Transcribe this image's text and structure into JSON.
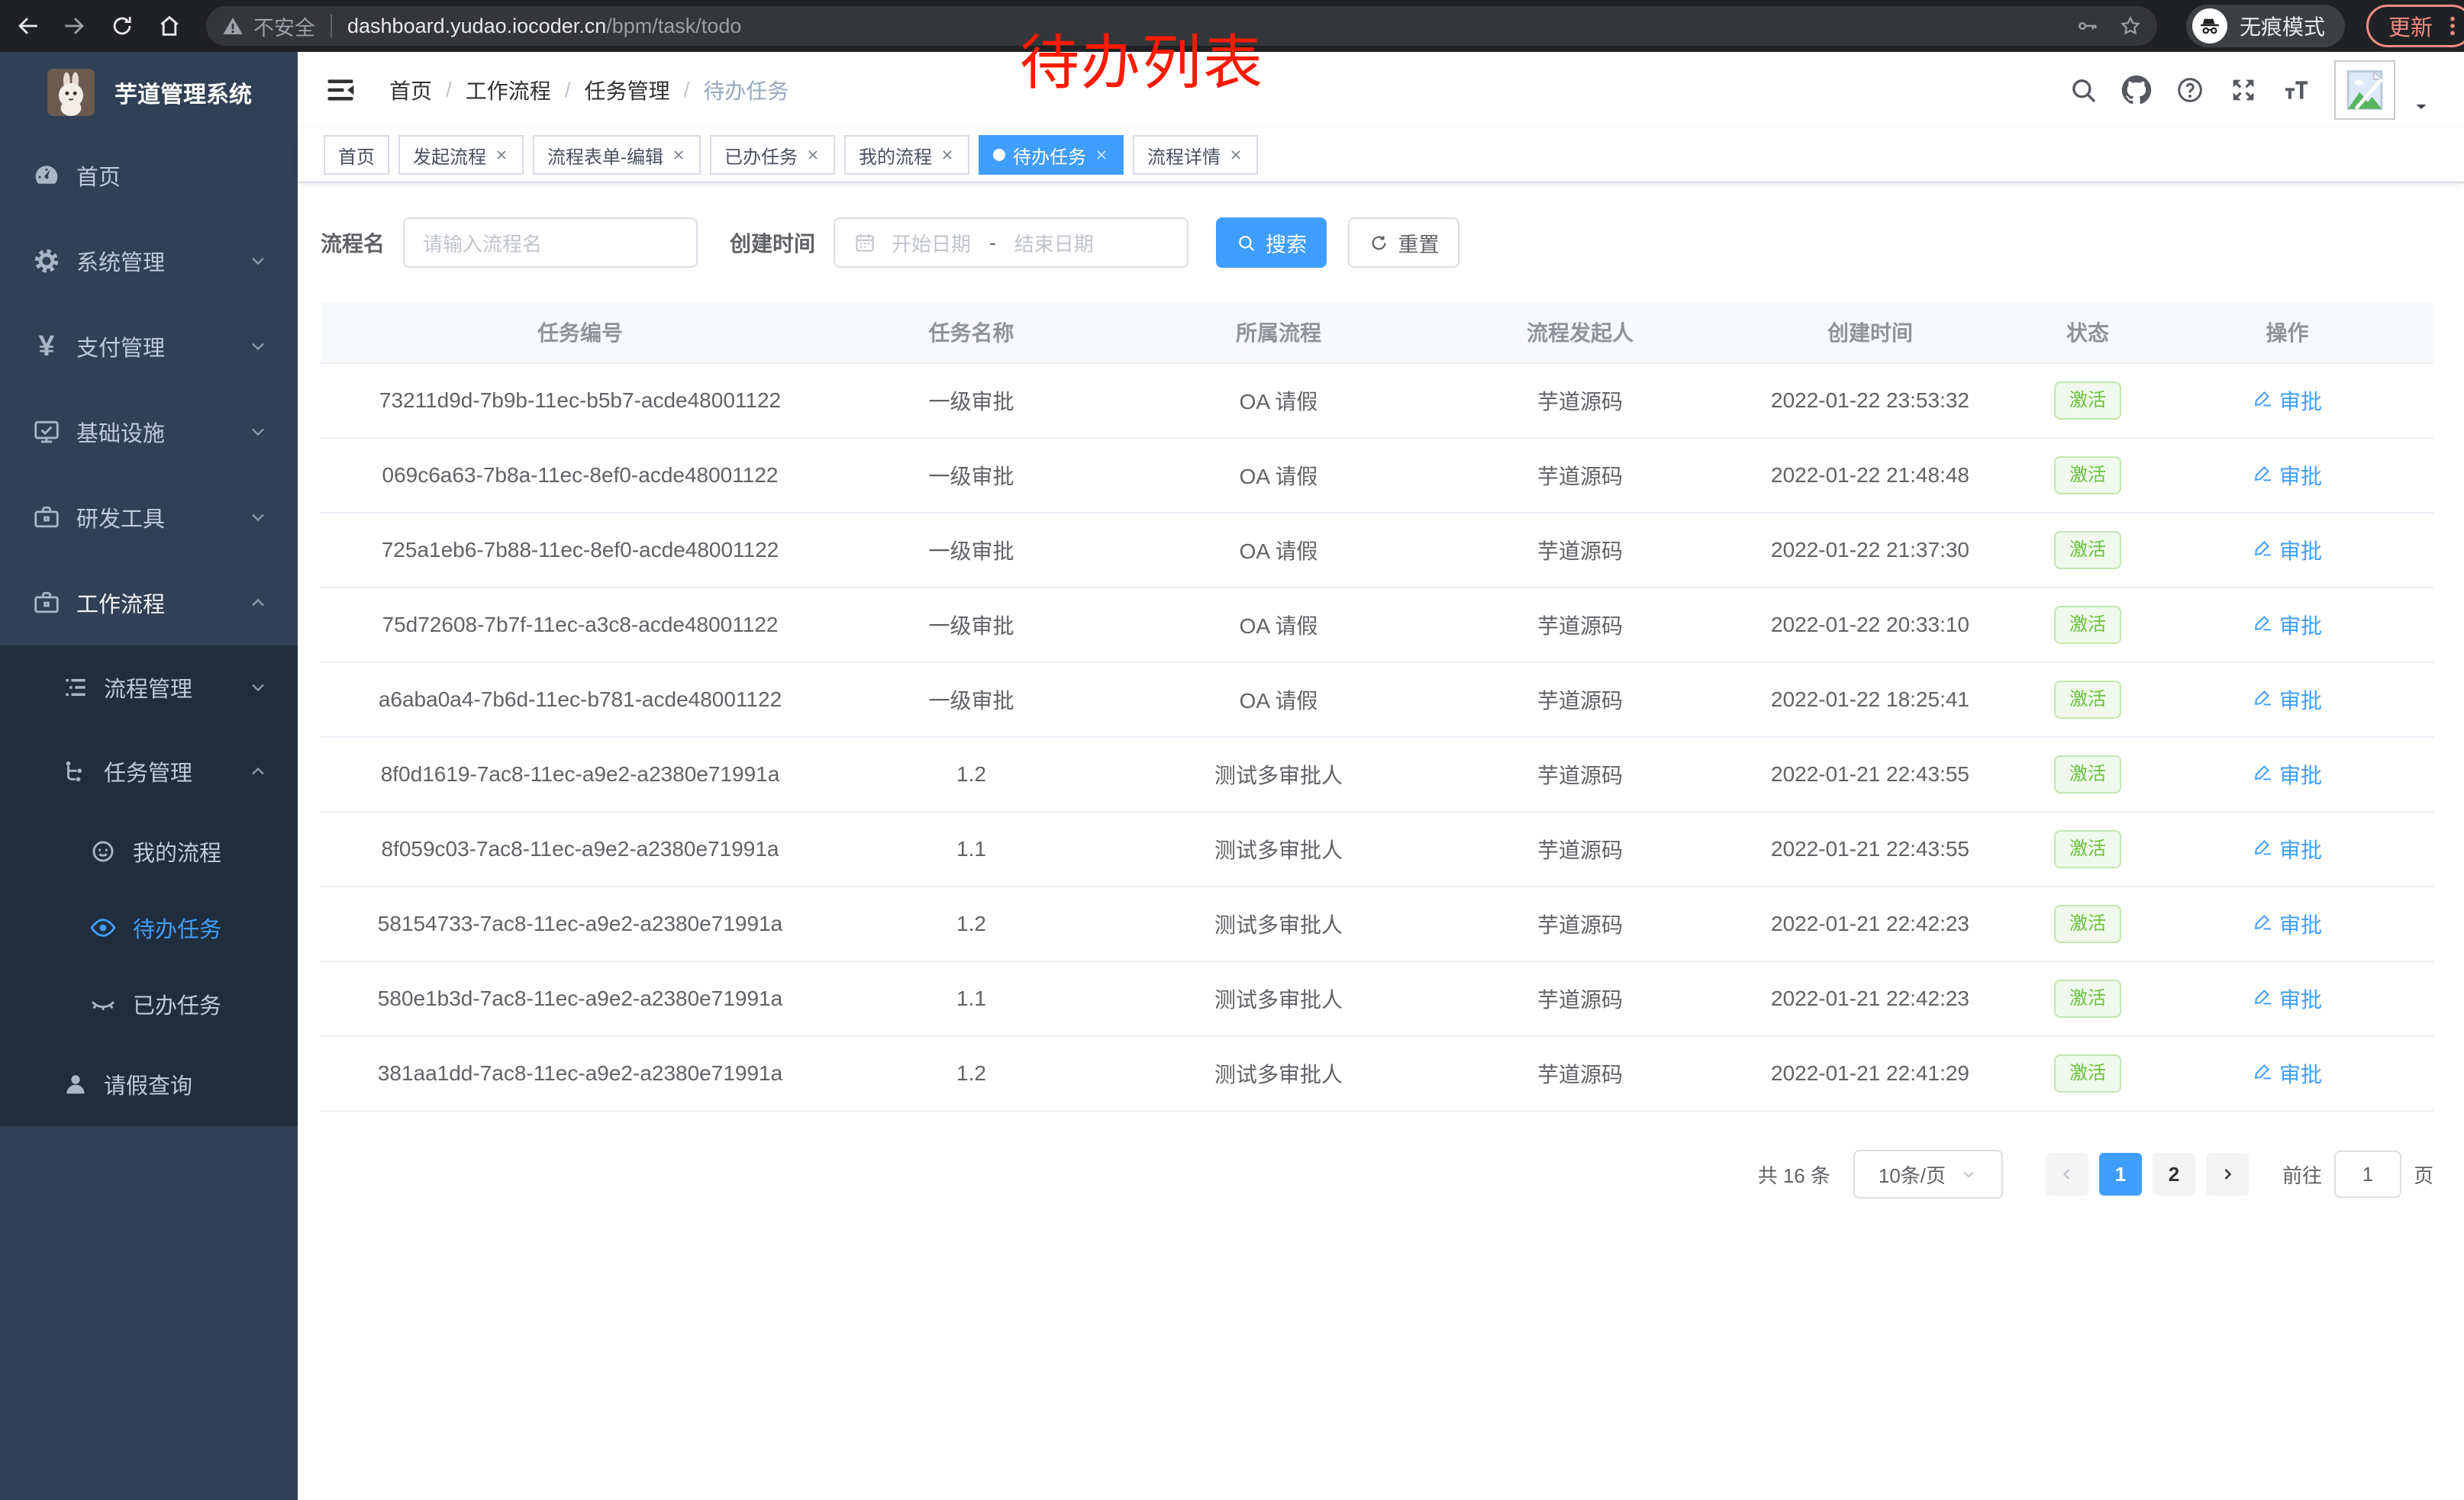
{
  "browser": {
    "security_label": "不安全",
    "url_host": "dashboard.yudao.iocoder.cn",
    "url_path": "/bpm/task/todo",
    "incognito_label": "无痕模式",
    "update_label": "更新"
  },
  "overlay_title": "待办列表",
  "sidebar": {
    "app_title": "芋道管理系统",
    "menu": [
      {
        "key": "home",
        "label": "首页",
        "icon": "dashboard-icon",
        "level": 1
      },
      {
        "key": "system-management",
        "label": "系统管理",
        "icon": "gear-icon",
        "level": 1,
        "chevron": "down"
      },
      {
        "key": "payment-management",
        "label": "支付管理",
        "icon": "yen-icon",
        "level": 1,
        "chevron": "down"
      },
      {
        "key": "infrastructure",
        "label": "基础设施",
        "icon": "monitor-icon",
        "level": 1,
        "chevron": "down"
      },
      {
        "key": "dev-tools",
        "label": "研发工具",
        "icon": "toolbox-icon",
        "level": 1,
        "chevron": "down"
      },
      {
        "key": "workflow",
        "label": "工作流程",
        "icon": "toolbox-icon",
        "level": 1,
        "chevron": "up",
        "highlight": true
      },
      {
        "key": "process-management",
        "label": "流程管理",
        "icon": "tree-list-icon",
        "level": 2,
        "chevron": "down"
      },
      {
        "key": "task-management",
        "label": "任务管理",
        "icon": "flow-icon",
        "level": 2,
        "chevron": "up"
      },
      {
        "key": "my-process",
        "label": "我的流程",
        "icon": "face-icon",
        "level": 3
      },
      {
        "key": "todo-tasks",
        "label": "待办任务",
        "icon": "eye-open-icon",
        "level": 3,
        "active": true
      },
      {
        "key": "done-tasks",
        "label": "已办任务",
        "icon": "eye-closed-icon",
        "level": 3
      },
      {
        "key": "leave-query",
        "label": "请假查询",
        "icon": "user-icon",
        "level": 2
      }
    ]
  },
  "header": {
    "breadcrumb": [
      "首页",
      "工作流程",
      "任务管理",
      "待办任务"
    ],
    "breadcrumb_separator": "/"
  },
  "tabs": [
    {
      "key": "home",
      "label": "首页",
      "closable": false
    },
    {
      "key": "start-process",
      "label": "发起流程",
      "closable": true
    },
    {
      "key": "process-form-edit",
      "label": "流程表单-编辑",
      "closable": true
    },
    {
      "key": "done-tasks",
      "label": "已办任务",
      "closable": true
    },
    {
      "key": "my-process",
      "label": "我的流程",
      "closable": true
    },
    {
      "key": "todo-tasks",
      "label": "待办任务",
      "closable": true,
      "active": true
    },
    {
      "key": "process-detail",
      "label": "流程详情",
      "closable": true
    }
  ],
  "filters": {
    "name_label": "流程名",
    "name_placeholder": "请输入流程名",
    "time_label": "创建时间",
    "start_placeholder": "开始日期",
    "range_separator": "-",
    "end_placeholder": "结束日期",
    "search_label": "搜索",
    "reset_label": "重置"
  },
  "table": {
    "columns": [
      "任务编号",
      "任务名称",
      "所属流程",
      "流程发起人",
      "创建时间",
      "状态",
      "操作"
    ],
    "status_label": "激活",
    "action_label": "审批",
    "rows": [
      {
        "id": "73211d9d-7b9b-11ec-b5b7-acde48001122",
        "name": "一级审批",
        "process": "OA 请假",
        "starter": "芋道源码",
        "created": "2022-01-22 23:53:32"
      },
      {
        "id": "069c6a63-7b8a-11ec-8ef0-acde48001122",
        "name": "一级审批",
        "process": "OA 请假",
        "starter": "芋道源码",
        "created": "2022-01-22 21:48:48"
      },
      {
        "id": "725a1eb6-7b88-11ec-8ef0-acde48001122",
        "name": "一级审批",
        "process": "OA 请假",
        "starter": "芋道源码",
        "created": "2022-01-22 21:37:30"
      },
      {
        "id": "75d72608-7b7f-11ec-a3c8-acde48001122",
        "name": "一级审批",
        "process": "OA 请假",
        "starter": "芋道源码",
        "created": "2022-01-22 20:33:10"
      },
      {
        "id": "a6aba0a4-7b6d-11ec-b781-acde48001122",
        "name": "一级审批",
        "process": "OA 请假",
        "starter": "芋道源码",
        "created": "2022-01-22 18:25:41"
      },
      {
        "id": "8f0d1619-7ac8-11ec-a9e2-a2380e71991a",
        "name": "1.2",
        "process": "测试多审批人",
        "starter": "芋道源码",
        "created": "2022-01-21 22:43:55"
      },
      {
        "id": "8f059c03-7ac8-11ec-a9e2-a2380e71991a",
        "name": "1.1",
        "process": "测试多审批人",
        "starter": "芋道源码",
        "created": "2022-01-21 22:43:55"
      },
      {
        "id": "58154733-7ac8-11ec-a9e2-a2380e71991a",
        "name": "1.2",
        "process": "测试多审批人",
        "starter": "芋道源码",
        "created": "2022-01-21 22:42:23"
      },
      {
        "id": "580e1b3d-7ac8-11ec-a9e2-a2380e71991a",
        "name": "1.1",
        "process": "测试多审批人",
        "starter": "芋道源码",
        "created": "2022-01-21 22:42:23"
      },
      {
        "id": "381aa1dd-7ac8-11ec-a9e2-a2380e71991a",
        "name": "1.2",
        "process": "测试多审批人",
        "starter": "芋道源码",
        "created": "2022-01-21 22:41:29"
      }
    ]
  },
  "pagination": {
    "total_label": "共 16 条",
    "page_size_label": "10条/页",
    "pages": [
      "1",
      "2"
    ],
    "active_page": "1",
    "goto_label": "前往",
    "goto_value": "1",
    "page_unit": "页"
  },
  "colors": {
    "accent": "#409eff",
    "success_text": "#67c23a",
    "success_bg": "#f0f9eb",
    "success_border": "#c2e7b0",
    "annotation_red": "#fb1b00",
    "sidebar_bg": "#304156",
    "submenu_bg": "#1f2d3d",
    "browser_bar_bg": "#202124",
    "update_button": "#f28b82"
  }
}
